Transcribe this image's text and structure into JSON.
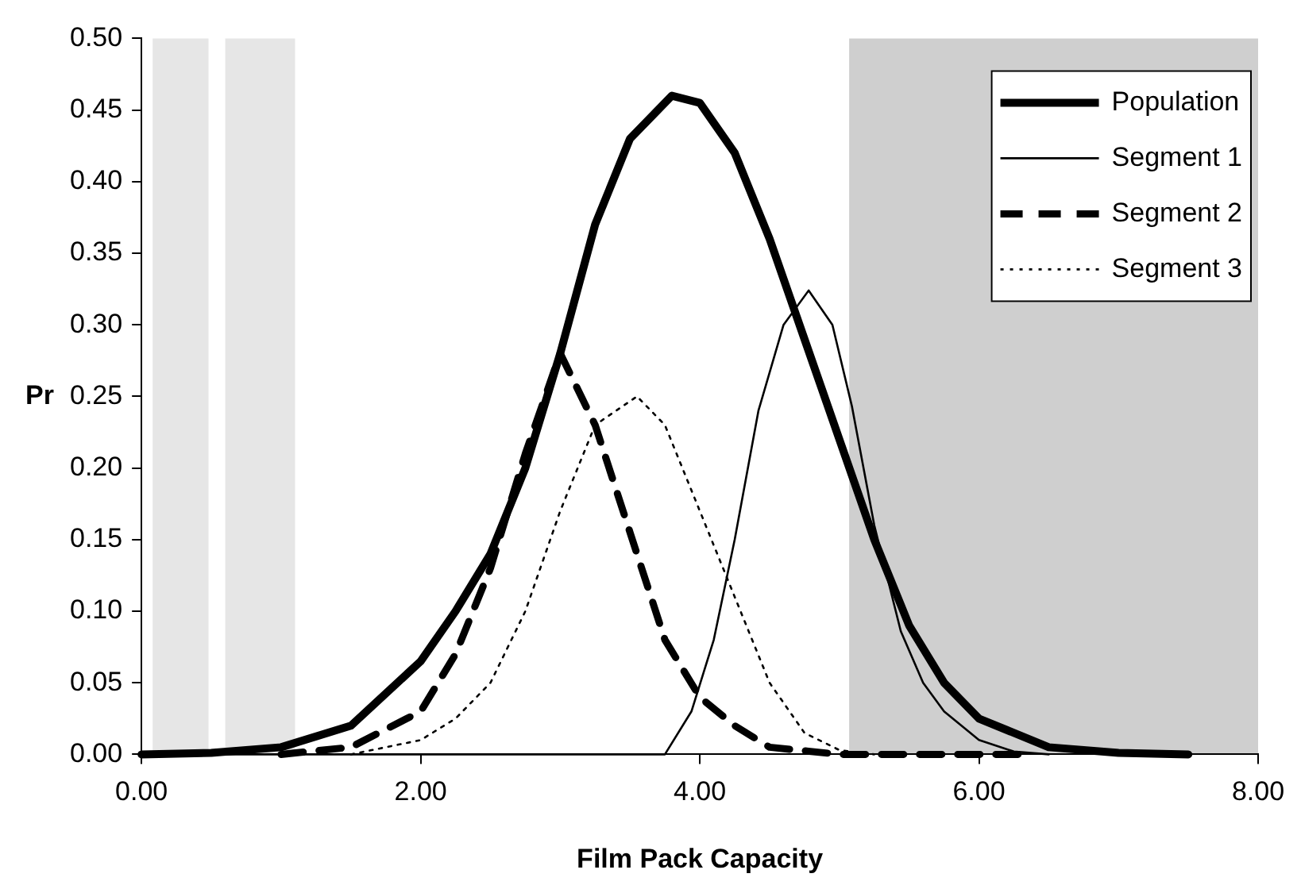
{
  "chart_data": {
    "type": "line",
    "xlabel": "Film Pack Capacity",
    "ylabel": "Pr",
    "xlim": [
      0,
      8
    ],
    "ylim": [
      0,
      0.5
    ],
    "xticks": [
      {
        "value": 0,
        "label": "0.00"
      },
      {
        "value": 2,
        "label": "2.00"
      },
      {
        "value": 4,
        "label": "4.00"
      },
      {
        "value": 6,
        "label": "6.00"
      },
      {
        "value": 8,
        "label": "8.00"
      }
    ],
    "yticks": [
      {
        "value": 0,
        "label": "0.00"
      },
      {
        "value": 0.05,
        "label": "0.05"
      },
      {
        "value": 0.1,
        "label": "0.10"
      },
      {
        "value": 0.15,
        "label": "0.15"
      },
      {
        "value": 0.2,
        "label": "0.20"
      },
      {
        "value": 0.25,
        "label": "0.25"
      },
      {
        "value": 0.3,
        "label": "0.30"
      },
      {
        "value": 0.35,
        "label": "0.35"
      },
      {
        "value": 0.4,
        "label": "0.40"
      },
      {
        "value": 0.45,
        "label": "0.45"
      },
      {
        "value": 0.5,
        "label": "0.50"
      }
    ],
    "grid": false,
    "legend": "top right",
    "marker": "none",
    "bands": [
      {
        "axis": "x",
        "from": 0.08,
        "to": 0.48,
        "color": "#e6e6e6"
      },
      {
        "axis": "x",
        "from": 0.6,
        "to": 1.1,
        "color": "#e6e6e6"
      },
      {
        "axis": "x",
        "from": 5.07,
        "to": 8,
        "color": "#cfcfcf"
      }
    ],
    "series": [
      {
        "name": "Population",
        "color": "#000000",
        "line_style": "solid",
        "x": [
          0,
          0.5,
          1,
          1.5,
          2,
          2.25,
          2.5,
          2.75,
          3,
          3.25,
          3.5,
          3.8,
          4,
          4.25,
          4.5,
          4.75,
          5,
          5.25,
          5.5,
          5.75,
          6,
          6.5,
          7,
          7.5
        ],
        "values": [
          0,
          0.001,
          0.005,
          0.02,
          0.065,
          0.1,
          0.14,
          0.2,
          0.28,
          0.37,
          0.43,
          0.46,
          0.455,
          0.42,
          0.36,
          0.29,
          0.22,
          0.15,
          0.09,
          0.05,
          0.025,
          0.005,
          0.001,
          0
        ]
      },
      {
        "name": "Segment 1",
        "color": "#000000",
        "line_style": "solid",
        "x": [
          0,
          3.75,
          3.94,
          4.1,
          4.25,
          4.42,
          4.6,
          4.78,
          4.95,
          5.09,
          5.25,
          5.44,
          5.6,
          5.75,
          6,
          6.25,
          6.5
        ],
        "values": [
          0,
          0,
          0.03,
          0.08,
          0.15,
          0.24,
          0.3,
          0.324,
          0.3,
          0.243,
          0.16,
          0.086,
          0.05,
          0.03,
          0.01,
          0.002,
          0
        ]
      },
      {
        "name": "Segment 2",
        "color": "#000000",
        "line_style": "dashed",
        "x": [
          1,
          1.5,
          2,
          2.25,
          2.5,
          2.75,
          3,
          3.25,
          3.5,
          3.75,
          4,
          4.25,
          4.5,
          5,
          5.5,
          6,
          6.3
        ],
        "values": [
          0,
          0.005,
          0.03,
          0.07,
          0.13,
          0.21,
          0.28,
          0.23,
          0.155,
          0.08,
          0.04,
          0.02,
          0.005,
          0,
          0,
          0,
          0
        ]
      },
      {
        "name": "Segment 3",
        "color": "#000000",
        "line_style": "dotted",
        "x": [
          1.5,
          2,
          2.25,
          2.5,
          2.75,
          3,
          3.25,
          3.55,
          3.75,
          4,
          4.25,
          4.5,
          4.75,
          5,
          5.25
        ],
        "values": [
          0,
          0.01,
          0.025,
          0.05,
          0.1,
          0.17,
          0.23,
          0.25,
          0.23,
          0.17,
          0.11,
          0.05,
          0.015,
          0.003,
          0
        ]
      }
    ]
  }
}
